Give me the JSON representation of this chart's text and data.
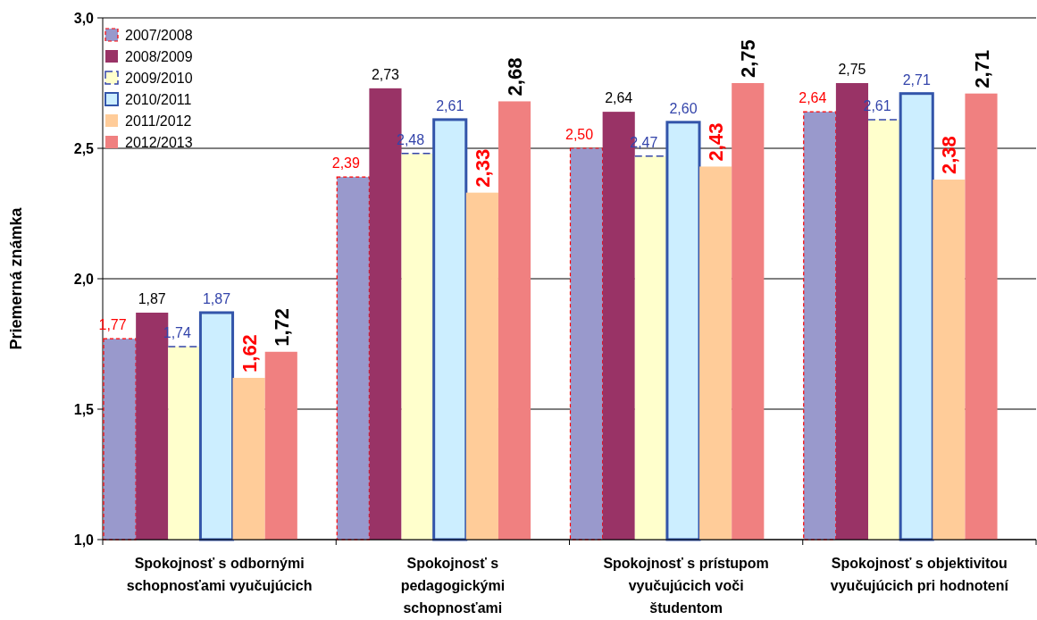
{
  "chart_data": {
    "type": "bar",
    "ylabel": "Priemerná známka",
    "categories": [
      "Spokojnosť s odbornými schopnosťami vyučujúcich",
      "Spokojnosť s pedagogickými schopnosťami vyučujúcich",
      "Spokojnosť s prístupom vyučujúcich voči študentom",
      "Spokojnosť s objektivitou vyučujúcich pri hodnotení"
    ],
    "series": [
      {
        "name": "2007/2008",
        "color": "#9999cc",
        "values": [
          1.77,
          2.39,
          2.5,
          2.64
        ],
        "value_labels": [
          "1,77",
          "2,39",
          "2,50",
          "2,64"
        ]
      },
      {
        "name": "2008/2009",
        "color": "#993366",
        "values": [
          1.87,
          2.73,
          2.64,
          2.75
        ],
        "value_labels": [
          "1,87",
          "2,73",
          "2,64",
          "2,75"
        ]
      },
      {
        "name": "2009/2010",
        "color": "#ffffcc",
        "values": [
          1.74,
          2.48,
          2.47,
          2.61
        ],
        "value_labels": [
          "1,74",
          "2,48",
          "2,47",
          "2,61"
        ]
      },
      {
        "name": "2010/2011",
        "color": "#cceeff",
        "values": [
          1.87,
          2.61,
          2.6,
          2.71
        ],
        "value_labels": [
          "1,87",
          "2,61",
          "2,60",
          "2,71"
        ]
      },
      {
        "name": "2011/2012",
        "color": "#ffcc99",
        "values": [
          1.62,
          2.33,
          2.43,
          2.38
        ],
        "value_labels": [
          "1,62",
          "2,33",
          "2,43",
          "2,38"
        ]
      },
      {
        "name": "2012/2013",
        "color": "#f08080",
        "values": [
          1.72,
          2.68,
          2.75,
          2.71
        ],
        "value_labels": [
          "1,72",
          "2,68",
          "2,75",
          "2,71"
        ]
      }
    ],
    "ylim": [
      1,
      3
    ],
    "yticks": [
      {
        "value": 1,
        "label": "1,0"
      },
      {
        "value": 1.5,
        "label": "1,5"
      },
      {
        "value": 2,
        "label": "2,0"
      },
      {
        "value": 2.5,
        "label": "2,5"
      },
      {
        "value": 3,
        "label": "3,0"
      }
    ],
    "grid": "y",
    "legend": "top left"
  }
}
